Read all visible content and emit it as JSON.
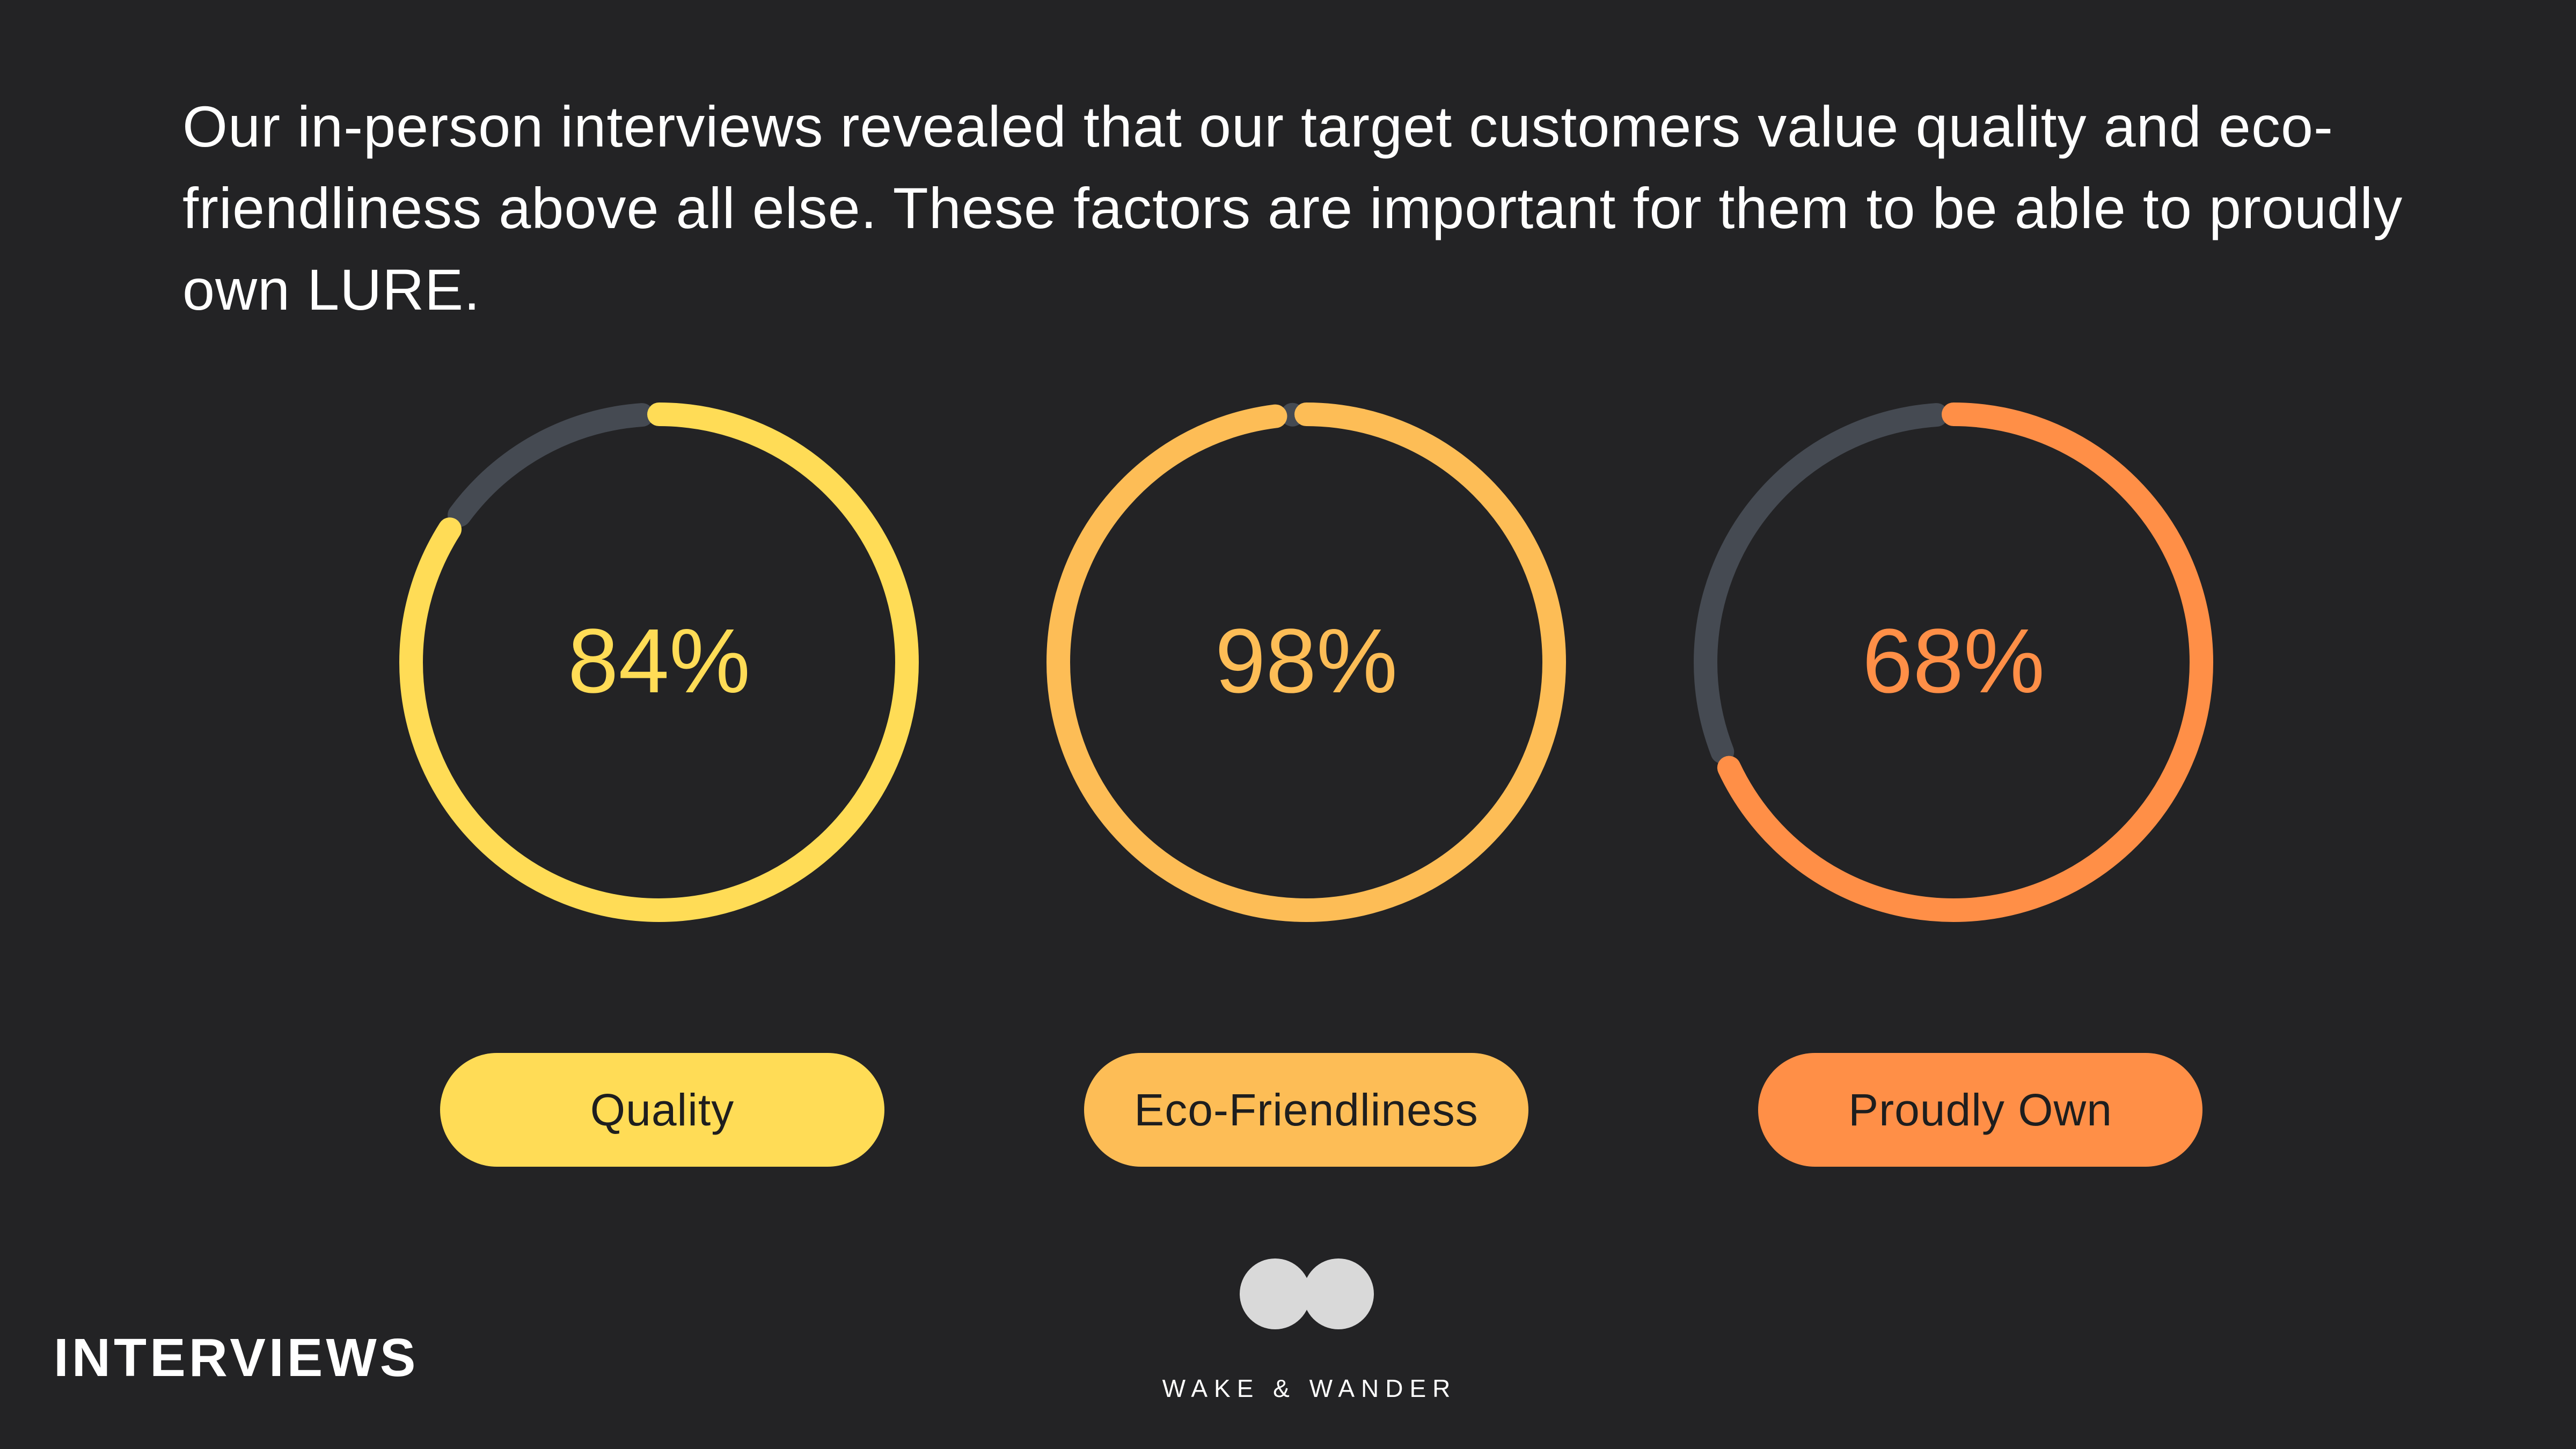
{
  "intro_text": "Our in-person interviews revealed that our target customers value quality and eco-friendliness above all else. These factors are important for them to be able to proudly own LURE.",
  "section_title": "INTERVIEWS",
  "brand_name": "WAKE & WANDER",
  "colors": {
    "background": "#232325",
    "track": "#454a52",
    "quality": "#ffdc56",
    "eco": "#fdbd56",
    "proud": "#ff8f47"
  },
  "chart_data": {
    "type": "donut",
    "title": "",
    "items": [
      {
        "label": "Quality",
        "value": 84,
        "display": "84%",
        "color": "#ffdc56"
      },
      {
        "label": "Eco-Friendliness",
        "value": 98,
        "display": "98%",
        "color": "#fdbd56"
      },
      {
        "label": "Proudly Own",
        "value": 68,
        "display": "68%",
        "color": "#ff8f47"
      }
    ],
    "max": 100
  }
}
